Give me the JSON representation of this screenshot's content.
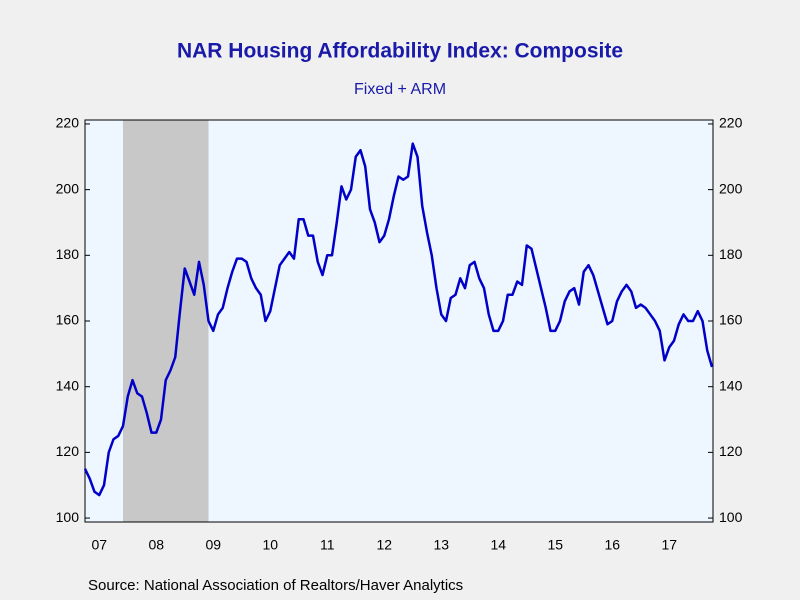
{
  "chart_data": {
    "type": "line",
    "title": "NAR Housing Affordability Index: Composite",
    "subtitle": "Fixed + ARM",
    "source": "Source:  National Association of Realtors/Haver Analytics",
    "categories": [
      null,
      null,
      null,
      "07",
      null,
      null,
      null,
      null,
      null,
      null,
      null,
      null,
      null,
      null,
      null,
      "08",
      null,
      null,
      null,
      null,
      null,
      null,
      null,
      null,
      null,
      null,
      null,
      "09",
      null,
      null,
      null,
      null,
      null,
      null,
      null,
      null,
      null,
      null,
      null,
      "10",
      null,
      null,
      null,
      null,
      null,
      null,
      null,
      null,
      null,
      null,
      null,
      "11",
      null,
      null,
      null,
      null,
      null,
      null,
      null,
      null,
      null,
      null,
      null,
      "12",
      null,
      null,
      null,
      null,
      null,
      null,
      null,
      null,
      null,
      null,
      null,
      "13",
      null,
      null,
      null,
      null,
      null,
      null,
      null,
      null,
      null,
      null,
      null,
      "14",
      null,
      null,
      null,
      null,
      null,
      null,
      null,
      null,
      null,
      null,
      null,
      "15",
      null,
      null,
      null,
      null,
      null,
      null,
      null,
      null,
      null,
      null,
      null,
      "16",
      null,
      null,
      null,
      null,
      null,
      null,
      null,
      null,
      null,
      null,
      null,
      "17",
      null,
      null,
      null,
      null,
      null,
      null,
      null,
      null,
      null
    ],
    "series": [
      {
        "name": "Composite",
        "color": "#0000c8",
        "values": [
          115,
          112,
          108,
          107,
          110,
          120,
          124,
          125,
          128,
          137,
          142,
          138,
          137,
          132,
          126,
          126,
          130,
          142,
          145,
          149,
          163,
          176,
          172,
          168,
          178,
          171,
          160,
          157,
          162,
          164,
          170,
          175,
          179,
          179,
          178,
          173,
          170,
          168,
          160,
          163,
          170,
          177,
          179,
          181,
          179,
          191,
          191,
          186,
          186,
          178,
          174,
          180,
          180,
          190,
          201,
          197,
          200,
          210,
          212,
          207,
          194,
          190,
          184,
          186,
          191,
          198,
          204,
          203,
          204,
          214,
          210,
          195,
          187,
          180,
          170,
          162,
          160,
          167,
          168,
          173,
          170,
          177,
          178,
          173,
          170,
          162,
          157,
          157,
          160,
          168,
          168,
          172,
          171,
          183,
          182,
          176,
          170,
          164,
          157,
          157,
          160,
          166,
          169,
          170,
          165,
          175,
          177,
          174,
          169,
          164,
          159,
          160,
          166,
          169,
          171,
          169,
          164,
          165,
          164,
          162,
          160,
          157,
          148,
          152,
          154,
          159,
          162,
          160,
          160,
          163,
          160,
          151,
          146
        ]
      }
    ],
    "recession": {
      "from": 8,
      "to": 26,
      "color": "#c8c8c8"
    },
    "ylim": [
      98.8,
      221.2
    ],
    "yticks": [
      100,
      120,
      140,
      160,
      180,
      200,
      220
    ],
    "y2lim": [
      98.8,
      221.2
    ],
    "y2ticks": [
      100,
      120,
      140,
      160,
      180,
      200,
      220
    ]
  }
}
